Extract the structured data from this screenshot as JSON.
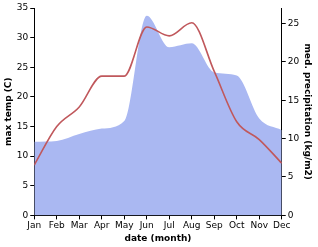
{
  "chart_data": {
    "type": "line",
    "x_label": "date (month)",
    "y_label": "max temp (C)",
    "y2_label": "med. precipitation (kg/m2)",
    "categories": [
      "Jan",
      "Feb",
      "Mar",
      "Apr",
      "May",
      "Jun",
      "Jul",
      "Aug",
      "Sep",
      "Oct",
      "Nov",
      "Dec"
    ],
    "series": [
      {
        "type": "area",
        "axis": "y2",
        "color": "#aab8f2",
        "values": [
          9.6,
          9.7,
          10.6,
          11.3,
          12.3,
          26,
          21.9,
          22.4,
          18.6,
          18.2,
          12.6,
          11.1
        ]
      },
      {
        "type": "line",
        "axis": "y",
        "color": "#c0585c",
        "values": [
          8.5,
          15,
          18.3,
          23.5,
          23.5,
          31.8,
          30.3,
          32.5,
          24.3,
          15.8,
          12.8,
          8.8
        ]
      }
    ],
    "ylim": [
      0,
      35
    ],
    "yticks": [
      0,
      5,
      10,
      15,
      20,
      25,
      30,
      35
    ],
    "y2lim": [
      0,
      27
    ],
    "y2ticks": [
      0,
      5,
      10,
      15,
      20,
      25
    ],
    "grid": false
  }
}
